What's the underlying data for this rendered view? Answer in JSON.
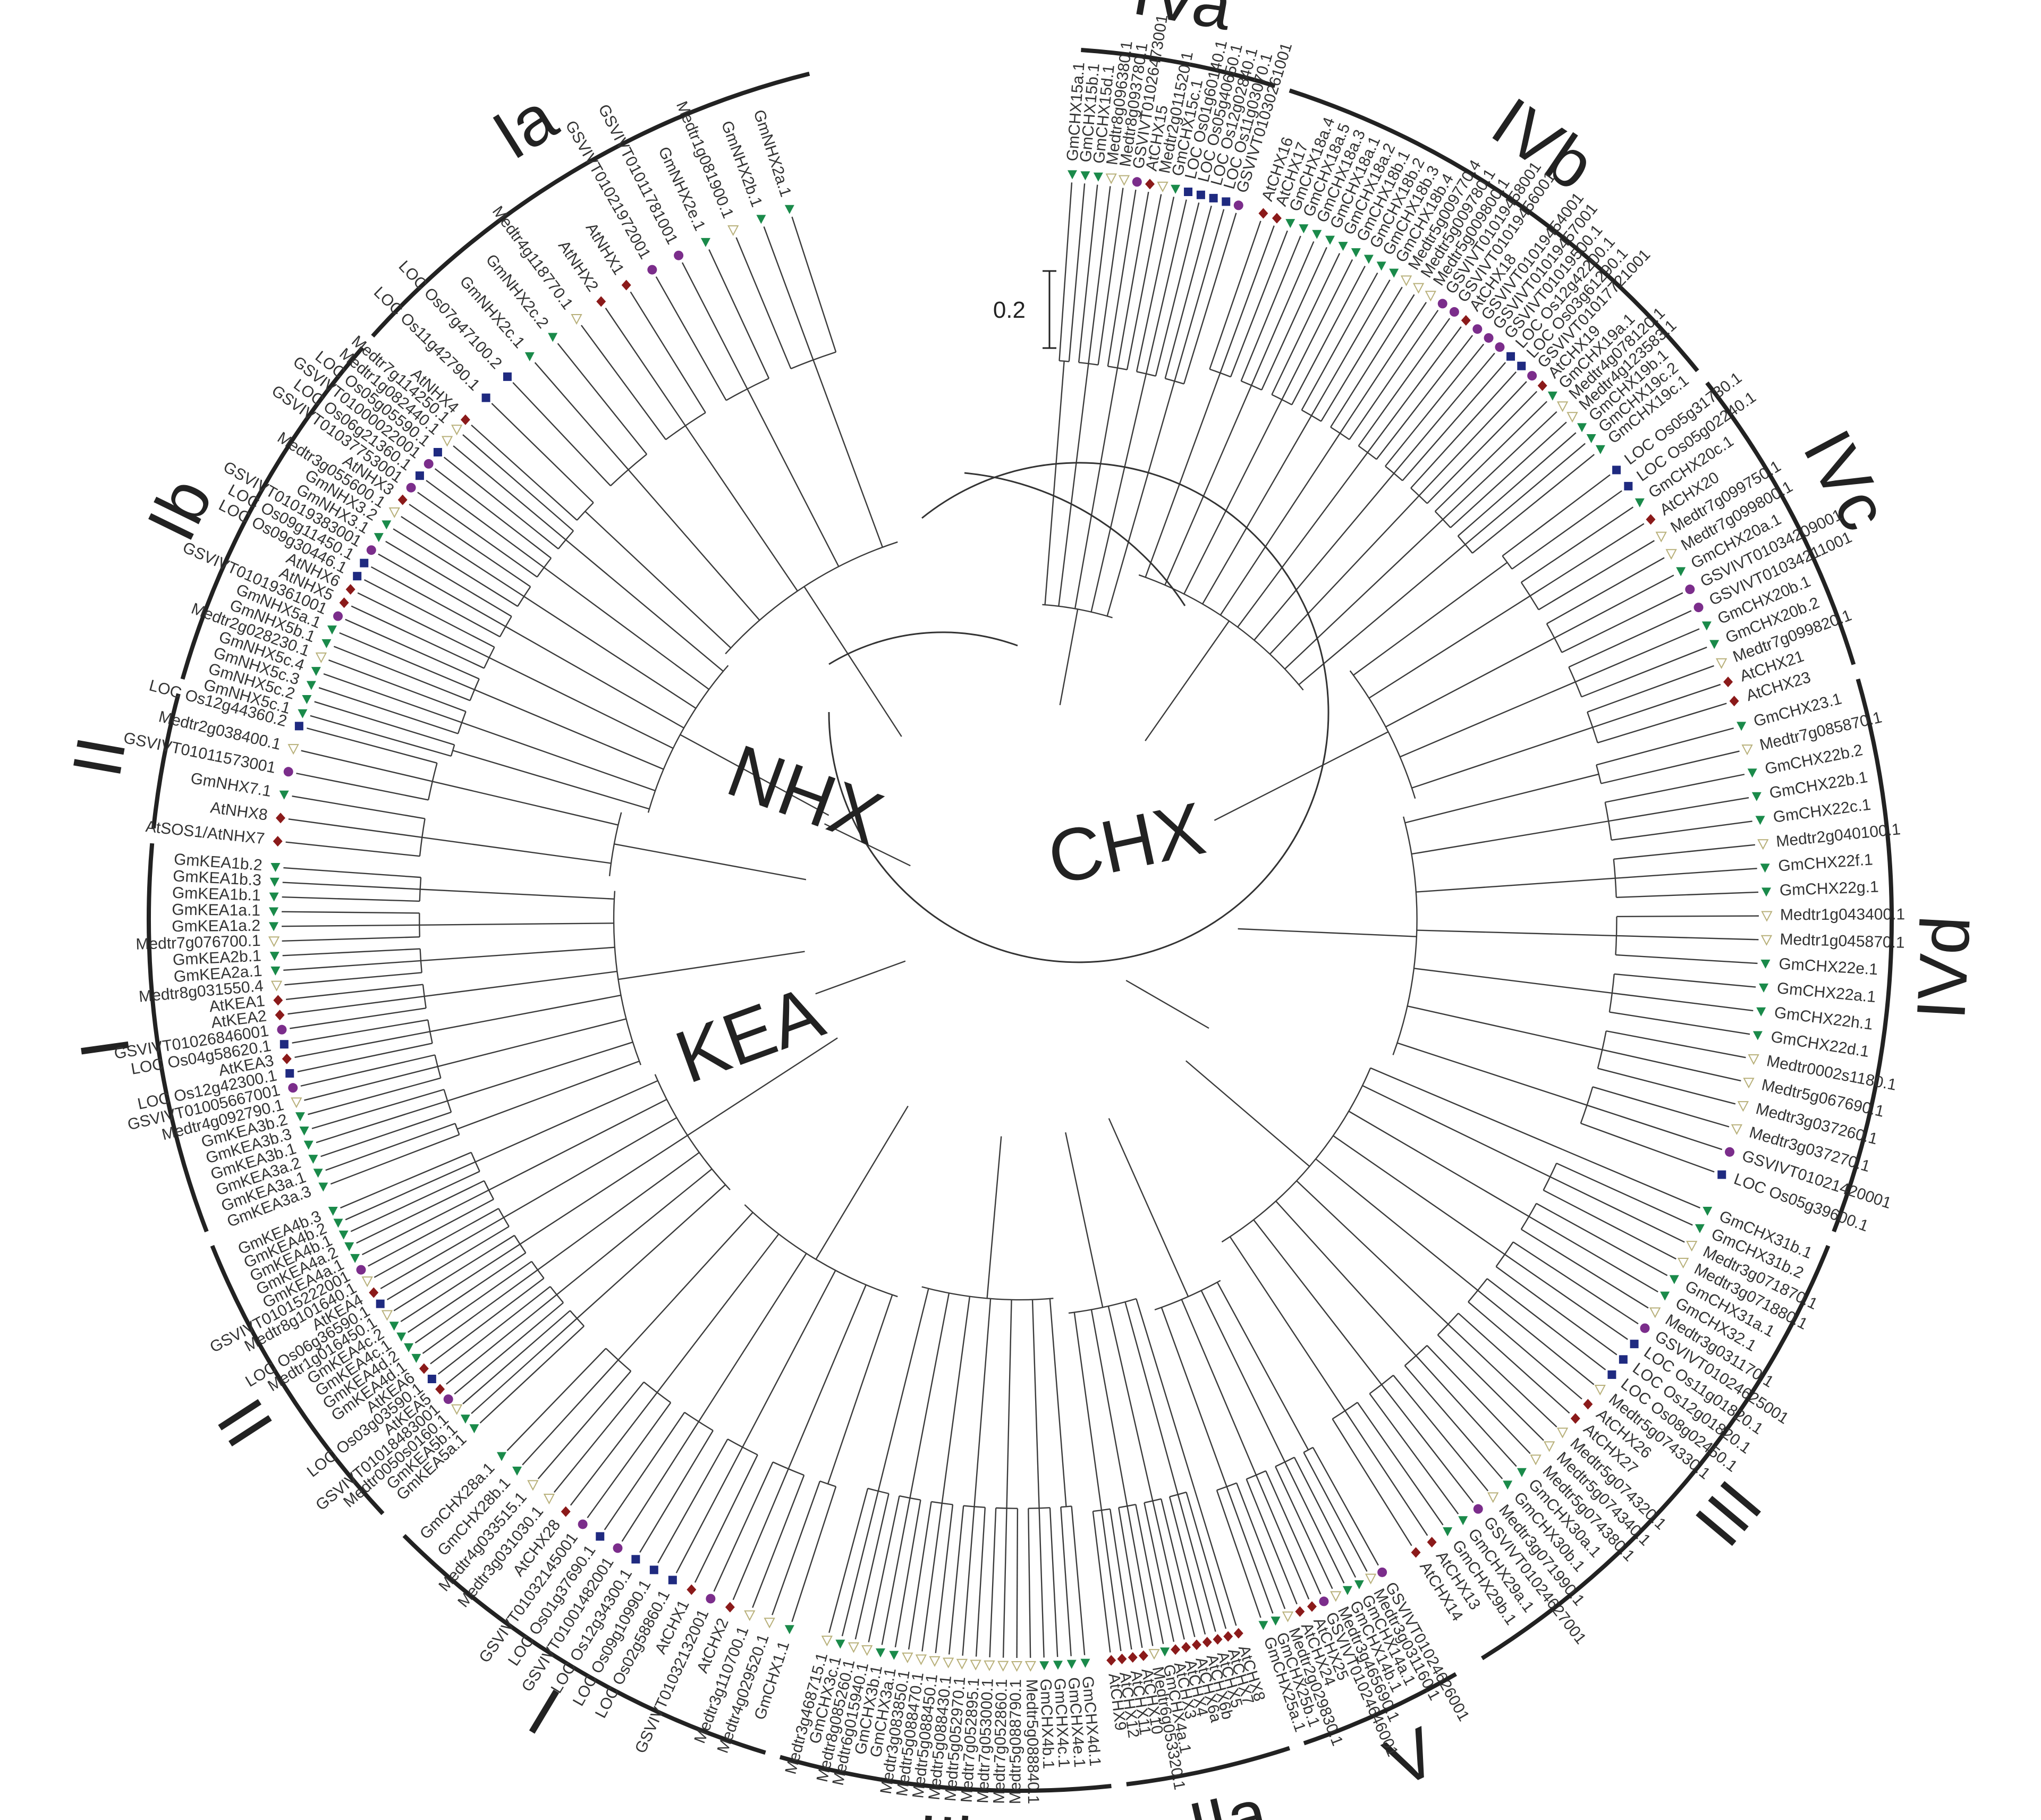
{
  "families": [
    "NHX",
    "KEA",
    "CHX"
  ],
  "clades": [
    "Ia",
    "Ib",
    "II",
    "I",
    "II",
    "I",
    "IIb",
    "IIa",
    "V",
    "III",
    "IVd",
    "IVc",
    "IVb",
    "IVa"
  ],
  "scale_bar": "0.2",
  "colors": {
    "line": "#222222",
    "At": "#8b1a1a",
    "Gm": "#1a8a4a",
    "Os": "#1f2a80",
    "Vv": "#7b2d8b",
    "Medtr": "#b8b07a"
  },
  "leaf_groups": {
    "NHX_Ia": [
      "GmNHX2a.1",
      "GmNHX2b.1",
      "Medtr1g081900.1",
      "GmNHX2e.1",
      "GSVIVT01011781001",
      "GSVIVT01021972001",
      "AtNHX1",
      "AtNHX2",
      "Medtr4g118770.1",
      "GmNHX2c.2",
      "GmNHX2c.1",
      "LOC Os07g47100.2",
      "LOC Os11g42790.1",
      "AtNHX4"
    ],
    "NHX_Ib": [
      "Medtr7g114250.1",
      "Medtr1g082440.1",
      "LOC Os05g05590.1",
      "GSVIVT01000022001",
      "LOC Os06g21360.1",
      "GSVIVT01037753001",
      "AtNHX3",
      "Medtr3g055600.1",
      "GmNHX3.2",
      "GmNHX3.1",
      "GSVIVT01019383001",
      "LOC Os09g11450.1",
      "LOC Os09g30446.1",
      "AtNHX6",
      "AtNHX5",
      "GSVIVT01019361001",
      "GmNHX5a.1",
      "GmNHX5b.1",
      "Medtr2g028230.1",
      "GmNHX5c.4",
      "GmNHX5c.3",
      "GmNHX5c.2",
      "GmNHX5c.1"
    ],
    "NHX_II": [
      "LOC Os12g44360.2",
      "Medtr2g038400.1",
      "GSVIVT01011573001",
      "GmNHX7.1",
      "AtNHX8",
      "AtSOS1/AtNHX7"
    ],
    "KEA_I": [
      "GmKEA1b.2",
      "GmKEA1b.3",
      "GmKEA1b.1",
      "GmKEA1a.1",
      "GmKEA1a.2",
      "Medtr7g076700.1",
      "GmKEA2b.1",
      "GmKEA2a.1",
      "Medtr8g031550.4",
      "AtKEA1",
      "AtKEA2",
      "GSVIVT01026846001",
      "LOC Os04g58620.1",
      "AtKEA3",
      "LOC Os12g42300.1",
      "GSVIVT01005667001",
      "Medtr4g092790.1",
      "GmKEA3b.2",
      "GmKEA3b.3",
      "GmKEA3b.1",
      "GmKEA3a.2",
      "GmKEA3a.1",
      "GmKEA3a.3"
    ],
    "KEA_II": [
      "GmKEA4b.3",
      "GmKEA4b.2",
      "GmKEA4b.1",
      "GmKEA4a.2",
      "GmKEA4a.1",
      "GSVIVT01015222001",
      "Medtr8g101640.1",
      "AtKEA4",
      "LOC Os06g36590.1",
      "Medtr1g016450.1",
      "GmKEA4c.2",
      "GmKEA4c.1",
      "GmKEA4d.2",
      "GmKEA4d.1",
      "AtKEA6",
      "LOC Os03g03590.1",
      "AtKEA5",
      "GSVIVT01018483001",
      "Medtr0050s0160.1",
      "GmKEA5b.1",
      "GmKEA5a.1"
    ],
    "CHX_I": [
      "GmCHX28a.1",
      "GmCHX28b.1",
      "Medtr4g033515.1",
      "Medtr3g031030.1",
      "AtCHX28",
      "GSVIVT01032145001",
      "LOC Os01g37690.1",
      "GSVIVT01001482001",
      "LOC Os12g34300.1",
      "LOC Os09g10990.1",
      "LOC Os02g58860.1",
      "AtCHX1",
      "GSVIVT01032132001",
      "AtCHX2",
      "Medtr3g110700.1",
      "Medtr4g029520.1",
      "GmCHX1.1"
    ],
    "CHX_IIb": [
      "Medtr3g468715.1",
      "GmCHX3c.1",
      "Medtr8g085260.1",
      "Medtr6g015940.1",
      "GmCHX3b.1",
      "GmCHX3a.1",
      "Medtr3g083850.1",
      "Medtr5g088470.1",
      "Medtr5g088450.1",
      "Medtr5g088430.1",
      "Medtr5g052970.1",
      "Medtr7g052895.1",
      "Medtr7g053000.1",
      "Medtr7g052860.1",
      "Medtr5g088790.1",
      "Medtr5g088840.1",
      "GmCHX4b.1",
      "GmCHX4c.1",
      "GmCHX4e.1",
      "GmCHX4d.1"
    ],
    "CHX_IIa": [
      "AtCHX9",
      "AtCHX12",
      "AtCHX11",
      "AtCHX10",
      "Medtr6g053320.1",
      "GmCHX4a.1",
      "AtCHX3",
      "AtCHX4",
      "AtCHX6a",
      "AtCHX6b",
      "AtCHX5",
      "AtCHX7",
      "AtCHX8"
    ],
    "CHX_V": [
      "GmCHX25a.1",
      "GmCHX25b.1",
      "Medtr2g029830.1",
      "AtCHX24",
      "AtCHX25",
      "GSVIVT01024646001",
      "Medtr3g465690.1",
      "GmCHX14b.1",
      "GmCHX14a.1",
      "Medtr3g031160.1",
      "GSVIVT01024626001"
    ],
    "CHX_III": [
      "AtCHX14",
      "AtCHX13",
      "GmCHX29b.1",
      "GmCHX29a.1",
      "GSVIVT01024627001",
      "Medtr3g071990.1",
      "GmCHX30b.1",
      "GmCHX30a.1",
      "Medtr5g074380.1",
      "Medtr5g074340.1",
      "Medtr5g074320.1",
      "AtCHX27",
      "AtCHX26",
      "Medtr5g074330.1",
      "LOC Os08g02450.1",
      "LOC Os12g01820.1",
      "LOC Os11g01820.1",
      "GSVIVT01024625001",
      "Medtr3g031170.1",
      "GmCHX32.1",
      "GmCHX31a.1",
      "Medtr3g071880.1",
      "Medtr3g071870.1",
      "GmCHX31b.2",
      "GmCHX31b.1"
    ],
    "CHX_IVd": [
      "LOC Os05g39600.1",
      "GSVIVT01021420001",
      "Medtr3g037270.1",
      "Medtr3g037260.1",
      "Medtr5g067690.1",
      "Medtr0002s1180.1",
      "GmCHX22d.1",
      "GmCHX22h.1",
      "GmCHX22a.1",
      "GmCHX22e.1",
      "Medtr1g045870.1",
      "Medtr1g043400.1",
      "GmCHX22g.1",
      "GmCHX22f.1",
      "Medtr2g040100.1",
      "GmCHX22c.1",
      "GmCHX22b.1",
      "GmCHX22b.2",
      "Medtr7g085870.1",
      "GmCHX23.1"
    ],
    "CHX_IVc": [
      "AtCHX23",
      "AtCHX21",
      "Medtr7g099820.1",
      "GmCHX20b.2",
      "GmCHX20b.1",
      "GSVIVT01034211001",
      "GSVIVT01034209001",
      "GmCHX20a.1",
      "Medtr7g099800.1",
      "Medtr7g099750.1",
      "AtCHX20",
      "GmCHX20c.1",
      "LOC Os05g02240.1",
      "LOC Os05g31730.1"
    ],
    "CHX_IVb": [
      "GmCHX19c.1",
      "GmCHX19c.2",
      "GmCHX19b.1",
      "Medtr4g123583.1",
      "Medtr4g078120.1",
      "GmCHX19a.1",
      "AtCHX19",
      "GSVIVT01017721001",
      "LOC Os03g61290.1",
      "LOC Os12g42200.1",
      "GSVIVT01019500.1",
      "GSVIVT01019457001",
      "GSVIVT01019454001",
      "AtCHX18",
      "GSVIVT01019456001",
      "GSVIVT01019458001",
      "Medtr5g009800.1",
      "Medtr5g009780.1",
      "Medtr5g009770.4",
      "GmCHX18b.4",
      "GmCHX18b.3",
      "GmCHX18b.2",
      "GmCHX18b.1",
      "GmCHX18a.2",
      "GmCHX18a.1",
      "GmCHX18a.3",
      "GmCHX18a.5",
      "GmCHX18a.4",
      "AtCHX17",
      "AtCHX16"
    ],
    "CHX_IVa": [
      "GSVIVT01030261001",
      "LOC Os11g03070.1",
      "LOC Os12g02840.1",
      "LOC Os05g40650.1",
      "LOC Os01g60140.1",
      "GmCHX15c.1",
      "Medtr2g011520.1",
      "AtCHX15",
      "GSVIVT01026473001",
      "Medtr8g093780.1",
      "Medtr8g096380.1",
      "GmCHX15d.1",
      "GmCHX15b.1",
      "GmCHX15a.1"
    ]
  }
}
